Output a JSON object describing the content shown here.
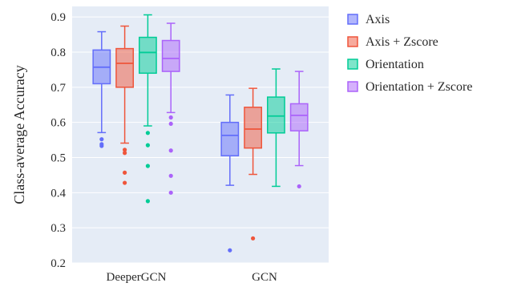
{
  "chart_data": {
    "type": "box",
    "title": "",
    "xlabel": "",
    "ylabel": "Class-average Accuracy",
    "ylim": [
      0.2,
      0.93
    ],
    "yticks": [
      0.2,
      0.3,
      0.4,
      0.5,
      0.6,
      0.7,
      0.8,
      0.9
    ],
    "ytick_labels": [
      "0.2",
      "0.3",
      "0.4",
      "0.5",
      "0.6",
      "0.7",
      "0.8",
      "0.9"
    ],
    "grid": true,
    "legend_position": "right",
    "categories": [
      "DeeperGCN",
      "GCN"
    ],
    "series": [
      {
        "name": "Axis",
        "color": "#636efa",
        "boxes": [
          {
            "min": 0.571,
            "q1": 0.71,
            "median": 0.757,
            "q3": 0.806,
            "max": 0.858,
            "outliers": [
              0.552,
              0.538,
              0.533
            ]
          },
          {
            "min": 0.421,
            "q1": 0.505,
            "median": 0.563,
            "q3": 0.6,
            "max": 0.678,
            "outliers": [
              0.236
            ]
          }
        ]
      },
      {
        "name": "Axis + Zscore",
        "color": "#ef553b",
        "boxes": [
          {
            "min": 0.541,
            "q1": 0.7,
            "median": 0.768,
            "q3": 0.81,
            "max": 0.874,
            "outliers": [
              0.522,
              0.513,
              0.457,
              0.428
            ]
          },
          {
            "min": 0.452,
            "q1": 0.527,
            "median": 0.581,
            "q3": 0.643,
            "max": 0.697,
            "outliers": [
              0.27
            ]
          }
        ]
      },
      {
        "name": "Orientation",
        "color": "#00cc96",
        "boxes": [
          {
            "min": 0.59,
            "q1": 0.74,
            "median": 0.799,
            "q3": 0.842,
            "max": 0.906,
            "outliers": [
              0.57,
              0.535,
              0.476,
              0.376
            ]
          },
          {
            "min": 0.418,
            "q1": 0.57,
            "median": 0.618,
            "q3": 0.672,
            "max": 0.752,
            "outliers": []
          }
        ]
      },
      {
        "name": "Orientation + Zscore",
        "color": "#ab63fa",
        "boxes": [
          {
            "min": 0.628,
            "q1": 0.745,
            "median": 0.782,
            "q3": 0.833,
            "max": 0.882,
            "outliers": [
              0.614,
              0.596,
              0.52,
              0.448,
              0.4
            ]
          },
          {
            "min": 0.477,
            "q1": 0.576,
            "median": 0.62,
            "q3": 0.653,
            "max": 0.745,
            "outliers": [
              0.418
            ]
          }
        ]
      }
    ]
  }
}
